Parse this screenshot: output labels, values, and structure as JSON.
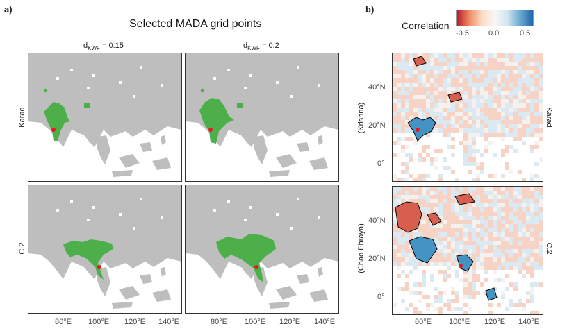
{
  "panel_a": {
    "label": "a)",
    "title": "Selected MADA grid points",
    "strips": [
      {
        "prefix": "d",
        "sub": "KWF",
        "value": " = 0.15"
      },
      {
        "prefix": "d",
        "sub": "KWF",
        "value": " = 0.2"
      }
    ],
    "rows": [
      "Karad",
      "C.2"
    ],
    "x_ticks": [
      "80°E",
      "100°E",
      "120°E",
      "140°E"
    ]
  },
  "panel_b": {
    "label": "b)",
    "legend_title": "Correlation",
    "legend_ticks": [
      "-0.5",
      "0.0",
      "0.5"
    ],
    "left_labels": [
      "(Krishna)",
      "(Chao Phraya)"
    ],
    "right_labels": [
      "Karad",
      "C.2"
    ],
    "y_ticks": [
      "40°N",
      "20°N",
      "0°"
    ],
    "x_ticks": [
      "80°E",
      "100°E",
      "120°E",
      "140°E"
    ]
  },
  "colors": {
    "land": "#bebebe",
    "selected": "#4daf4a",
    "station": "#e41a1c",
    "neg": "#d6604d",
    "pos": "#4393c3"
  }
}
